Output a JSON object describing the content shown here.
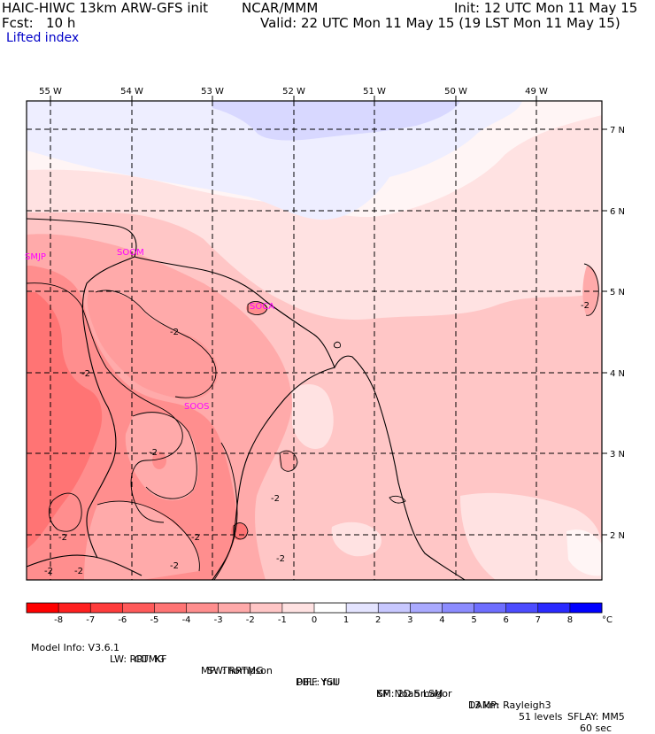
{
  "header": {
    "model": "HAIC-HIWC 13km ARW-GFS init",
    "org": "NCAR/MMM",
    "init": "Init: 12 UTC Mon 11 May 15",
    "fcst_label": "Fcst:",
    "fcst_value": "10 h",
    "valid": "Valid: 22 UTC Mon 11 May 15 (19 LST Mon 11 May 15)",
    "field": "Lifted index"
  },
  "map": {
    "lon_labels": [
      "55 W",
      "54 W",
      "53 W",
      "52 W",
      "51 W",
      "50 W",
      "49 W"
    ],
    "lat_labels": [
      "7 N",
      "6 N",
      "5 N",
      "4 N",
      "3 N",
      "2 N"
    ],
    "stations": [
      "SMJP",
      "SOCA",
      "SOOM",
      "SOOS"
    ],
    "contour_labels": [
      "-2",
      "-2",
      "-2",
      "-2",
      "-2",
      "-2",
      "-2",
      "-2",
      "-2",
      "-2",
      "-2"
    ]
  },
  "colorbar": {
    "levels": [
      "-8",
      "-7",
      "-6",
      "-5",
      "-4",
      "-3",
      "-2",
      "-1",
      "0",
      "1",
      "2",
      "3",
      "4",
      "5",
      "6",
      "7",
      "8"
    ],
    "unit": "°C",
    "colors": [
      "#ff0000",
      "#ff2020",
      "#ff3c3c",
      "#ff5a5a",
      "#ff7474",
      "#ff8e8e",
      "#ffaaaa",
      "#ffc6c6",
      "#ffe2e2",
      "#ffffff",
      "#e4e4ff",
      "#c8c8ff",
      "#aaaaff",
      "#8c8cff",
      "#6e6eff",
      "#4c4cff",
      "#2a2aff",
      "#0000ff"
    ]
  },
  "footer": {
    "line1": [
      "Model Info: V3.6.1",
      "CU: KF",
      "MP: Thompson",
      "PBL: YSU",
      "SF: Noah LSM",
      "13 km",
      "51 levels",
      "60 sec"
    ],
    "line2": [
      "LW: RRTMG",
      "SW: RRTMG",
      "DIFF: full",
      "KM: 2D Smagor",
      "DAMP: Rayleigh3",
      "SFLAY: MM5"
    ]
  }
}
